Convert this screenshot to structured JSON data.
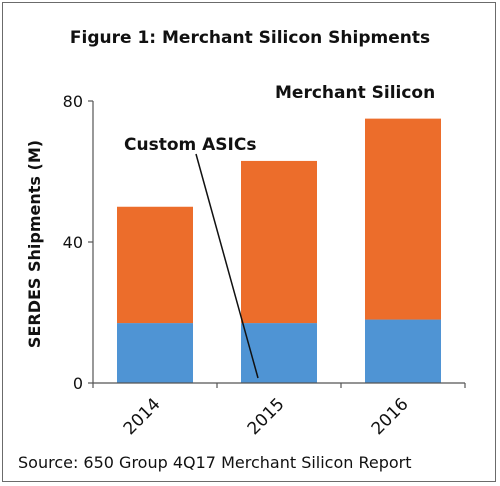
{
  "chart_data": {
    "type": "bar",
    "stacked": true,
    "title": "Figure 1: Merchant Silicon Shipments",
    "ylabel": "SERDES Shipments (M)",
    "xlabel": "",
    "categories": [
      "2014",
      "2015",
      "2016"
    ],
    "ylim": [
      0,
      80
    ],
    "yticks": [
      0,
      40,
      80
    ],
    "series": [
      {
        "name": "Custom ASICs",
        "values": [
          17,
          17,
          18
        ],
        "color": "#4f94d4"
      },
      {
        "name": "Merchant Silicon",
        "values": [
          33,
          46,
          57
        ],
        "color": "#ec6d2b"
      }
    ],
    "grid": false,
    "source": "Source: 650 Group 4Q17 Merchant Silicon Report"
  }
}
